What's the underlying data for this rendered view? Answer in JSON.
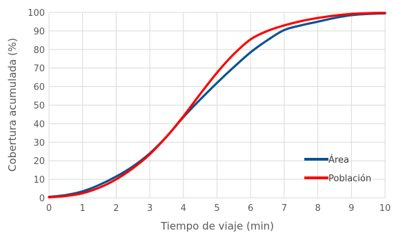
{
  "chart_data": {
    "type": "line",
    "title": "",
    "xlabel": "Tiempo de viaje (min)",
    "ylabel": "Cobertura acumulada (%)",
    "xlim": [
      0,
      10
    ],
    "ylim": [
      0,
      100
    ],
    "x_ticks": [
      0,
      1,
      2,
      3,
      4,
      5,
      6,
      7,
      8,
      9,
      10
    ],
    "y_ticks": [
      0,
      10,
      20,
      30,
      40,
      50,
      60,
      70,
      80,
      90,
      100
    ],
    "grid": true,
    "legend_position": "bottom-right",
    "series": [
      {
        "name": "Área",
        "color": "#0b5394",
        "x": [
          0,
          0.5,
          1,
          1.5,
          2,
          2.5,
          3,
          3.5,
          4,
          4.5,
          5,
          5.5,
          6,
          6.5,
          7,
          7.5,
          8,
          8.5,
          9,
          9.5,
          10
        ],
        "y": [
          0.5,
          1.5,
          3.5,
          7,
          11.5,
          17,
          24,
          33,
          43.5,
          53,
          62,
          70.5,
          78.5,
          85,
          90.5,
          93,
          95,
          97,
          98.5,
          99.2,
          99.5
        ]
      },
      {
        "name": "Población",
        "color": "#ff0000",
        "x": [
          0,
          0.5,
          1,
          1.5,
          2,
          2.5,
          3,
          3.5,
          4,
          4.5,
          5,
          5.5,
          6,
          6.5,
          7,
          7.5,
          8,
          8.5,
          9,
          9.5,
          10
        ],
        "y": [
          0.3,
          1,
          2.5,
          5.5,
          10,
          16,
          23.5,
          33,
          44,
          56,
          67.5,
          77.5,
          85.5,
          90,
          93,
          95.3,
          97,
          98.3,
          99.2,
          99.6,
          99.8
        ]
      }
    ]
  }
}
